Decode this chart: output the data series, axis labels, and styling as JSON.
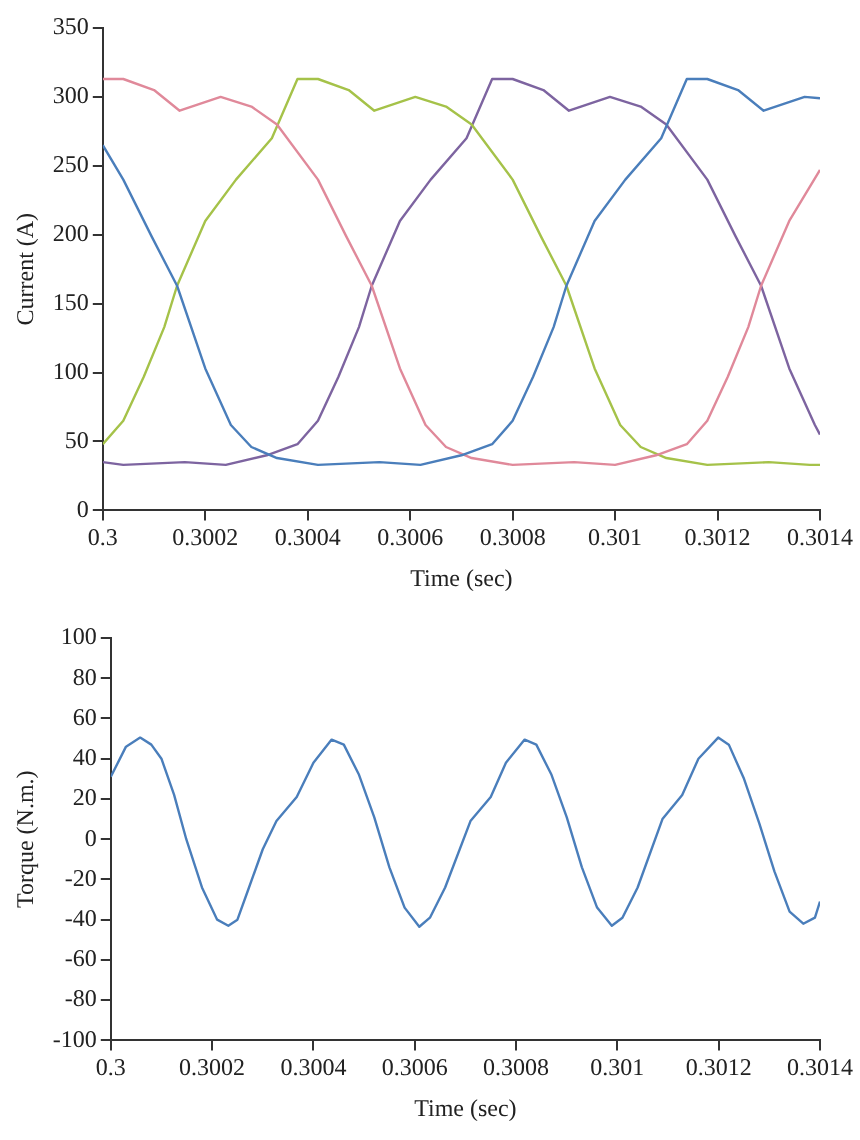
{
  "chart_data": [
    {
      "type": "line",
      "xlabel": "Time (sec)",
      "ylabel": "Current (A)",
      "xlim": [
        0.3,
        0.3014
      ],
      "xticks": [
        0.3,
        0.3002,
        0.3004,
        0.3006,
        0.3008,
        0.301,
        0.3012,
        0.3014
      ],
      "ylim": [
        0,
        350
      ],
      "yticks": [
        0,
        50,
        100,
        150,
        200,
        250,
        300,
        350
      ],
      "grid": false,
      "legend": false,
      "marker": "none",
      "line_style": "solid",
      "series": [
        {
          "color": "#4a7ebb",
          "x": [
            0.3,
            0.30004,
            0.300095,
            0.300145,
            0.3002,
            0.30025,
            0.30029,
            0.30034,
            0.30042,
            0.30054,
            0.30062,
            0.3007,
            0.30076,
            0.3008,
            0.30084,
            0.30088,
            0.300905,
            0.30096,
            0.30102,
            0.30109,
            0.30114,
            0.30118,
            0.30124,
            0.30129,
            0.30137,
            0.3014
          ],
          "values": [
            265,
            240,
            199,
            163,
            103,
            62,
            46,
            38,
            33,
            35,
            33,
            40,
            48,
            65,
            97,
            133,
            163,
            210,
            240,
            270,
            313,
            313,
            305,
            290,
            300,
            299
          ]
        },
        {
          "color": "#e0899a",
          "x": [
            0.3,
            0.30004,
            0.3001,
            0.30015,
            0.30023,
            0.30029,
            0.30034,
            0.30042,
            0.300475,
            0.300525,
            0.30058,
            0.30063,
            0.30067,
            0.30072,
            0.3008,
            0.30092,
            0.301,
            0.30108,
            0.30114,
            0.30118,
            0.30122,
            0.30126,
            0.301285,
            0.30134,
            0.3014
          ],
          "values": [
            313,
            313,
            305,
            290,
            300,
            293,
            280,
            240,
            199,
            163,
            103,
            62,
            46,
            38,
            33,
            35,
            33,
            40,
            48,
            65,
            97,
            133,
            163,
            210,
            247
          ]
        },
        {
          "color": "#a5c249",
          "x": [
            0.3,
            0.30004,
            0.30008,
            0.30012,
            0.300145,
            0.3002,
            0.30026,
            0.30033,
            0.30038,
            0.30042,
            0.30048,
            0.30053,
            0.30061,
            0.30067,
            0.30072,
            0.3008,
            0.300855,
            0.300905,
            0.30096,
            0.30101,
            0.30105,
            0.3011,
            0.30118,
            0.3013,
            0.30138,
            0.3014
          ],
          "values": [
            48,
            65,
            97,
            133,
            163,
            210,
            240,
            270,
            313,
            313,
            305,
            290,
            300,
            293,
            280,
            240,
            199,
            163,
            103,
            62,
            46,
            38,
            33,
            35,
            33,
            33
          ]
        },
        {
          "color": "#7d64a0",
          "x": [
            0.3,
            0.30004,
            0.30016,
            0.30024,
            0.30032,
            0.30038,
            0.30042,
            0.30046,
            0.3005,
            0.300525,
            0.30058,
            0.30064,
            0.30071,
            0.30076,
            0.3008,
            0.30086,
            0.30091,
            0.30099,
            0.30105,
            0.3011,
            0.30118,
            0.301235,
            0.301285,
            0.30134,
            0.30139,
            0.3014
          ],
          "values": [
            35,
            33,
            35,
            33,
            40,
            48,
            65,
            97,
            133,
            163,
            210,
            240,
            270,
            313,
            313,
            305,
            290,
            300,
            293,
            280,
            240,
            199,
            163,
            103,
            62,
            55
          ]
        }
      ]
    },
    {
      "type": "line",
      "xlabel": "Time (sec)",
      "ylabel": "Torque (N.m.)",
      "xlim": [
        0.3,
        0.3014
      ],
      "xticks": [
        0.3,
        0.3002,
        0.3004,
        0.3006,
        0.3008,
        0.301,
        0.3012,
        0.3014
      ],
      "ylim": [
        -100,
        100
      ],
      "yticks": [
        -100,
        -80,
        -60,
        -40,
        -20,
        0,
        20,
        40,
        60,
        80,
        100
      ],
      "grid": false,
      "legend": false,
      "marker": "none",
      "line_style": "solid",
      "series": [
        {
          "color": "#4a7ebb",
          "x": [
            0.3,
            0.30003,
            0.300058,
            0.30008,
            0.3001,
            0.300125,
            0.300149,
            0.30018,
            0.30021,
            0.300232,
            0.30025,
            0.30027,
            0.3003,
            0.300327,
            0.300367,
            0.3004,
            0.300436,
            0.30046,
            0.30049,
            0.30052,
            0.30055,
            0.30058,
            0.300609,
            0.30063,
            0.30066,
            0.30071,
            0.30075,
            0.30078,
            0.300817,
            0.30084,
            0.30087,
            0.3009,
            0.30093,
            0.30096,
            0.300989,
            0.30101,
            0.30104,
            0.301089,
            0.301128,
            0.30116,
            0.301199,
            0.30122,
            0.30125,
            0.30128,
            0.30131,
            0.30134,
            0.301367,
            0.30139,
            0.3014
          ],
          "values": [
            31,
            46,
            50.5,
            47,
            40,
            22,
            0,
            -24,
            -40,
            -43,
            -40,
            -26,
            -5,
            9,
            21,
            38,
            49.5,
            47,
            32,
            11,
            -14,
            -34,
            -43.5,
            -39,
            -24,
            9,
            21,
            38,
            49.5,
            47,
            32,
            11,
            -14,
            -34,
            -43,
            -39,
            -24,
            10,
            22,
            40,
            50.5,
            47,
            30,
            8,
            -16,
            -36,
            -42,
            -39,
            -31
          ]
        }
      ]
    }
  ]
}
